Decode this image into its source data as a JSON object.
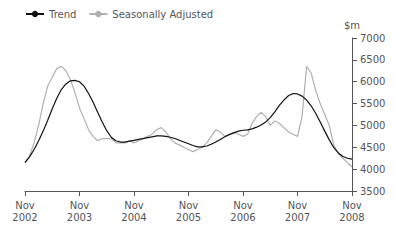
{
  "chart_data": {
    "type": "line",
    "ylabel": "$m",
    "categories": [
      "Nov\n2002",
      null,
      null,
      null,
      null,
      null,
      null,
      null,
      null,
      null,
      null,
      null,
      "Nov\n2003",
      null,
      null,
      null,
      null,
      null,
      null,
      null,
      null,
      null,
      null,
      null,
      "Nov\n2004",
      null,
      null,
      null,
      null,
      null,
      null,
      null,
      null,
      null,
      null,
      null,
      "Nov\n2005",
      null,
      null,
      null,
      null,
      null,
      null,
      null,
      null,
      null,
      null,
      null,
      "Nov\n2006",
      null,
      null,
      null,
      null,
      null,
      null,
      null,
      null,
      null,
      null,
      null,
      "Nov\n2007",
      null,
      null,
      null,
      null,
      null,
      null,
      null,
      null,
      null,
      null,
      null,
      "Nov\n2008"
    ],
    "series": [
      {
        "name": "Trend",
        "color": "#111111",
        "values": [
          4150,
          4280,
          4450,
          4650,
          4870,
          5120,
          5380,
          5620,
          5820,
          5950,
          6020,
          6030,
          6000,
          5900,
          5730,
          5530,
          5300,
          5080,
          4880,
          4730,
          4650,
          4620,
          4620,
          4640,
          4660,
          4680,
          4700,
          4720,
          4740,
          4760,
          4760,
          4750,
          4730,
          4700,
          4660,
          4620,
          4580,
          4540,
          4510,
          4510,
          4530,
          4570,
          4620,
          4680,
          4740,
          4790,
          4830,
          4870,
          4890,
          4900,
          4920,
          4960,
          5010,
          5080,
          5180,
          5310,
          5460,
          5580,
          5680,
          5730,
          5720,
          5670,
          5580,
          5450,
          5280,
          5080,
          4870,
          4670,
          4490,
          4370,
          4290,
          4250,
          4230
        ]
      },
      {
        "name": "Seasonally Adjusted",
        "color": "#b0b0b0",
        "values": [
          4150,
          4300,
          4600,
          5000,
          5500,
          5900,
          6100,
          6300,
          6350,
          6250,
          6050,
          5750,
          5400,
          5150,
          4900,
          4750,
          4650,
          4700,
          4700,
          4700,
          4600,
          4600,
          4600,
          4650,
          4600,
          4650,
          4700,
          4750,
          4800,
          4900,
          4950,
          4850,
          4700,
          4600,
          4550,
          4500,
          4450,
          4400,
          4450,
          4500,
          4600,
          4750,
          4900,
          4850,
          4750,
          4800,
          4850,
          4800,
          4750,
          4800,
          5050,
          5200,
          5300,
          5200,
          5000,
          5100,
          5050,
          4950,
          4850,
          4800,
          4750,
          5200,
          6350,
          6200,
          5800,
          5500,
          5250,
          5000,
          4550,
          4350,
          4250,
          4150,
          4050
        ]
      }
    ],
    "ylim": [
      3500,
      7000
    ],
    "yticks": [
      3500,
      4000,
      4500,
      5000,
      5500,
      6000,
      6500,
      7000
    ],
    "grid": false,
    "legend": "upper left"
  }
}
